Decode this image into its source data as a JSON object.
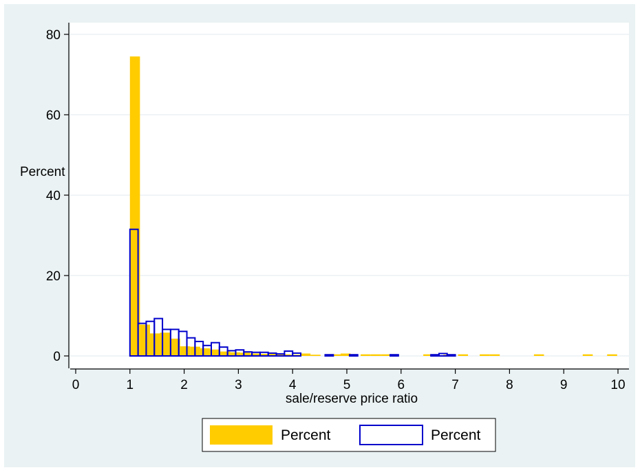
{
  "chart_data": {
    "type": "bar",
    "xlabel": "sale/reserve price ratio",
    "ylabel": "Percent",
    "xlim": [
      0,
      10
    ],
    "ylim": [
      0,
      80
    ],
    "xticks": [
      "0",
      "1",
      "2",
      "3",
      "4",
      "5",
      "6",
      "7",
      "8",
      "9",
      "10"
    ],
    "yticks": [
      "0",
      "20",
      "40",
      "60",
      "80"
    ],
    "grid": true,
    "legend_position": "bottom",
    "bin_width": 0.185,
    "series": [
      {
        "name": "Percent",
        "style": "filled",
        "color": "#ffcc00",
        "bins": [
          {
            "x0": 1.0,
            "value": 74.5
          },
          {
            "x0": 1.185,
            "value": 7.8
          },
          {
            "x0": 1.37,
            "value": 5.6
          },
          {
            "x0": 1.555,
            "value": 5.8
          },
          {
            "x0": 1.74,
            "value": 4.3
          },
          {
            "x0": 1.925,
            "value": 2.4
          },
          {
            "x0": 2.11,
            "value": 2.3
          },
          {
            "x0": 2.295,
            "value": 1.9
          },
          {
            "x0": 2.48,
            "value": 1.6
          },
          {
            "x0": 2.665,
            "value": 1.1
          },
          {
            "x0": 2.85,
            "value": 0.9
          },
          {
            "x0": 3.035,
            "value": 0.8
          },
          {
            "x0": 3.22,
            "value": 0.6
          },
          {
            "x0": 3.405,
            "value": 0.5
          },
          {
            "x0": 3.59,
            "value": 0.5
          },
          {
            "x0": 3.775,
            "value": 0.4
          },
          {
            "x0": 3.96,
            "value": 0.3
          },
          {
            "x0": 4.145,
            "value": 0.6
          },
          {
            "x0": 4.33,
            "value": 0.3
          },
          {
            "x0": 4.7,
            "value": 0.4
          },
          {
            "x0": 4.885,
            "value": 0.6
          },
          {
            "x0": 5.255,
            "value": 0.4
          },
          {
            "x0": 5.44,
            "value": 0.4
          },
          {
            "x0": 5.625,
            "value": 0.4
          },
          {
            "x0": 6.41,
            "value": 0.4
          },
          {
            "x0": 6.78,
            "value": 0.3
          },
          {
            "x0": 7.05,
            "value": 0.4
          },
          {
            "x0": 7.45,
            "value": 0.4
          },
          {
            "x0": 7.635,
            "value": 0.4
          },
          {
            "x0": 8.45,
            "value": 0.4
          },
          {
            "x0": 9.35,
            "value": 0.4
          },
          {
            "x0": 9.8,
            "value": 0.4
          }
        ]
      },
      {
        "name": "Percent",
        "style": "outline",
        "color": "#0000cc",
        "bins": [
          {
            "x0": 1.0,
            "value": 31.5
          },
          {
            "x0": 1.15,
            "value": 8.1
          },
          {
            "x0": 1.3,
            "value": 8.6
          },
          {
            "x0": 1.45,
            "value": 9.3
          },
          {
            "x0": 1.6,
            "value": 6.6
          },
          {
            "x0": 1.75,
            "value": 6.6
          },
          {
            "x0": 1.9,
            "value": 6.1
          },
          {
            "x0": 2.05,
            "value": 4.5
          },
          {
            "x0": 2.2,
            "value": 3.6
          },
          {
            "x0": 2.35,
            "value": 2.6
          },
          {
            "x0": 2.5,
            "value": 3.3
          },
          {
            "x0": 2.65,
            "value": 2.2
          },
          {
            "x0": 2.8,
            "value": 1.3
          },
          {
            "x0": 2.95,
            "value": 1.5
          },
          {
            "x0": 3.1,
            "value": 1.0
          },
          {
            "x0": 3.25,
            "value": 0.9
          },
          {
            "x0": 3.4,
            "value": 0.9
          },
          {
            "x0": 3.55,
            "value": 0.7
          },
          {
            "x0": 3.7,
            "value": 0.5
          },
          {
            "x0": 3.85,
            "value": 1.2
          },
          {
            "x0": 4.0,
            "value": 0.7
          },
          {
            "x0": 4.6,
            "value": 0.3
          },
          {
            "x0": 5.05,
            "value": 0.3
          },
          {
            "x0": 5.8,
            "value": 0.3
          },
          {
            "x0": 6.55,
            "value": 0.3
          },
          {
            "x0": 6.7,
            "value": 0.6
          },
          {
            "x0": 6.85,
            "value": 0.3
          }
        ]
      }
    ]
  }
}
